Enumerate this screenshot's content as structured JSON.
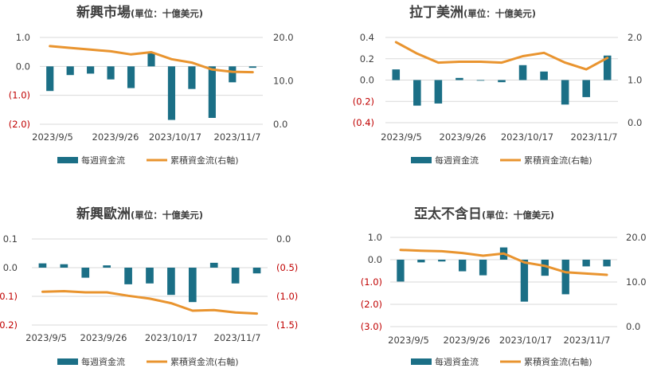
{
  "legend": {
    "bar_label": "每週資金流",
    "line_label": "累積資金流(右軸)"
  },
  "colors": {
    "bar": "#1b6f86",
    "line": "#e9942f",
    "negative_tick": "#c00000",
    "grid": "#d9d9d9",
    "text": "#404040"
  },
  "chart_data": [
    {
      "type": "bar+line",
      "title": "新興市場",
      "subtitle": "(單位：十億美元)",
      "x_ticks": [
        "2023/9/5",
        "2023/9/26",
        "2023/10/17",
        "2023/11/7"
      ],
      "left_axis": {
        "min": -2.0,
        "max": 1.0,
        "ticks": [
          "1.0",
          "0.0",
          "(1.0)",
          "(2.0)"
        ],
        "tick_values": [
          1.0,
          0.0,
          -1.0,
          -2.0
        ]
      },
      "right_axis": {
        "min": 0,
        "max": 20,
        "ticks": [
          "20.0",
          "10.0",
          "0.0"
        ],
        "tick_values": [
          20,
          10,
          0
        ]
      },
      "bars": [
        -0.85,
        -0.3,
        -0.25,
        -0.45,
        -0.75,
        0.45,
        -1.85,
        -0.78,
        -1.78,
        -0.55,
        -0.05
      ],
      "line": [
        18.0,
        17.6,
        17.2,
        16.8,
        16.1,
        16.6,
        15.0,
        14.2,
        12.6,
        12.1,
        12.0
      ]
    },
    {
      "type": "bar+line",
      "title": "拉丁美洲",
      "subtitle": "(單位：十億美元)",
      "x_ticks": [
        "2023/9/5",
        "2023/9/26",
        "2023/10/17",
        "2023/11/7"
      ],
      "left_axis": {
        "min": -0.4,
        "max": 0.4,
        "ticks": [
          "0.4",
          "0.2",
          "0.0",
          "(0.2)",
          "(0.4)"
        ],
        "tick_values": [
          0.4,
          0.2,
          0.0,
          -0.2,
          -0.4
        ]
      },
      "right_axis": {
        "min": 0,
        "max": 2,
        "ticks": [
          "2.0",
          "1.0",
          "0.0"
        ],
        "tick_values": [
          2,
          1,
          0
        ]
      },
      "bars": [
        0.1,
        -0.24,
        -0.22,
        0.02,
        0.0,
        -0.02,
        0.14,
        0.08,
        -0.23,
        -0.16,
        0.23
      ],
      "line": [
        1.89,
        1.62,
        1.41,
        1.43,
        1.43,
        1.41,
        1.56,
        1.64,
        1.41,
        1.25,
        1.52
      ]
    },
    {
      "type": "bar+line",
      "title": "新興歐洲",
      "subtitle": "(單位：十億美元)",
      "x_ticks": [
        "2023/9/5",
        "2023/9/26",
        "2023/10/17",
        "2023/11/7"
      ],
      "left_axis": {
        "min": -0.2,
        "max": 0.1,
        "ticks": [
          "0.1",
          "0.0",
          "(0.1)",
          "(0.2)"
        ],
        "tick_values": [
          0.1,
          0.0,
          -0.1,
          -0.2
        ]
      },
      "right_axis": {
        "min": -1.5,
        "max": 0.0,
        "ticks": [
          "0.0",
          "(0.5)",
          "(1.0)",
          "(1.5)"
        ],
        "tick_values": [
          0.0,
          -0.5,
          -1.0,
          -1.5
        ]
      },
      "bars": [
        0.015,
        0.012,
        -0.035,
        0.008,
        -0.058,
        -0.055,
        -0.095,
        -0.12,
        0.017,
        -0.055,
        -0.02
      ],
      "line": [
        -0.92,
        -0.91,
        -0.93,
        -0.93,
        -0.99,
        -1.04,
        -1.12,
        -1.25,
        -1.24,
        -1.28,
        -1.3
      ]
    },
    {
      "type": "bar+line",
      "title": "亞太不含日",
      "subtitle": "(單位：十億美元)",
      "x_ticks": [
        "2023/9/5",
        "2023/9/26",
        "2023/10/17",
        "2023/11/7"
      ],
      "left_axis": {
        "min": -3.0,
        "max": 1.0,
        "ticks": [
          "1.0",
          "0.0",
          "(1.0)",
          "(2.0)",
          "(3.0)"
        ],
        "tick_values": [
          1.0,
          0.0,
          -1.0,
          -2.0,
          -3.0
        ]
      },
      "right_axis": {
        "min": 0,
        "max": 20,
        "ticks": [
          "20.0",
          "10.0",
          "0.0"
        ],
        "tick_values": [
          20,
          10,
          0
        ]
      },
      "bars": [
        -0.98,
        -0.12,
        -0.08,
        -0.52,
        -0.7,
        0.55,
        -1.88,
        -0.72,
        -1.55,
        -0.3,
        -0.3
      ],
      "line": [
        17.2,
        17.0,
        16.9,
        16.5,
        15.9,
        16.4,
        14.4,
        13.6,
        12.2,
        11.9,
        11.6
      ]
    }
  ]
}
